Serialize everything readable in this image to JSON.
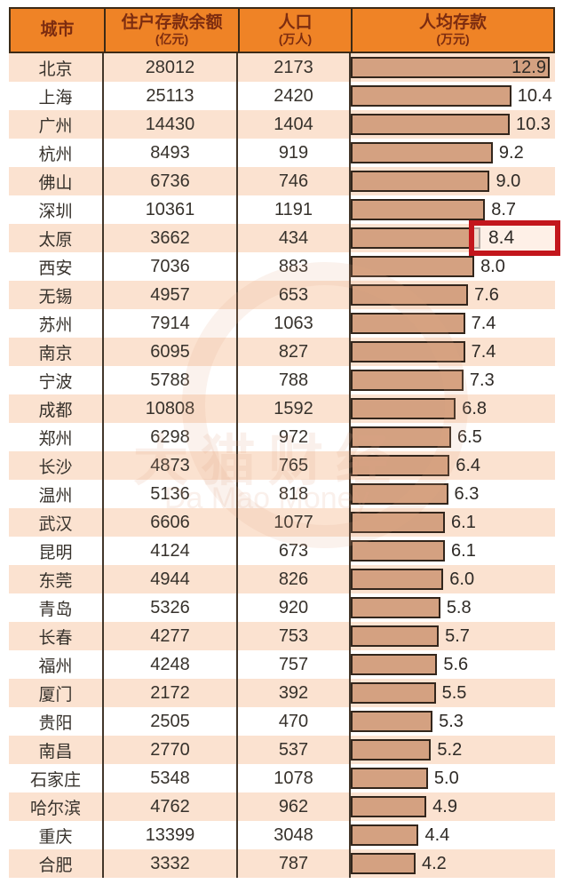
{
  "header": {
    "columns": [
      {
        "title": "城市",
        "unit": ""
      },
      {
        "title": "住户存款余额",
        "unit": "(亿元)"
      },
      {
        "title": "人口",
        "unit": "(万人)"
      },
      {
        "title": "人均存款",
        "unit": "(万元)"
      }
    ]
  },
  "watermark": {
    "text_cn": "大猫财经",
    "text_en": "Da Mao Money"
  },
  "colors": {
    "header_bg": "#ef8326",
    "header_text": "#7c2c10",
    "row_alt_bg": "#fbe2d0",
    "bar_fill": "#d4a181",
    "bar_border": "#33261c",
    "highlight_border": "#c3161c",
    "table_line": "#42362a"
  },
  "chart_data": {
    "type": "bar",
    "orientation": "horizontal",
    "title": "",
    "columns": [
      "城市",
      "住户存款余额(亿元)",
      "人口(万人)",
      "人均存款(万元)"
    ],
    "bar_field": "per_capita",
    "bar_max": 12.9,
    "legend": "none",
    "highlighted_city": "太原",
    "rows": [
      {
        "city": "北京",
        "deposit": 28012,
        "population": 2173,
        "per_capita": "12.9",
        "bar_label_inside": true
      },
      {
        "city": "上海",
        "deposit": 25113,
        "population": 2420,
        "per_capita": "10.4"
      },
      {
        "city": "广州",
        "deposit": 14430,
        "population": 1404,
        "per_capita": "10.3"
      },
      {
        "city": "杭州",
        "deposit": 8493,
        "population": 919,
        "per_capita": "9.2"
      },
      {
        "city": "佛山",
        "deposit": 6736,
        "population": 746,
        "per_capita": "9.0"
      },
      {
        "city": "深圳",
        "deposit": 10361,
        "population": 1191,
        "per_capita": "8.7"
      },
      {
        "city": "太原",
        "deposit": 3662,
        "population": 434,
        "per_capita": "8.4",
        "highlighted": true
      },
      {
        "city": "西安",
        "deposit": 7036,
        "population": 883,
        "per_capita": "8.0"
      },
      {
        "city": "无锡",
        "deposit": 4957,
        "population": 653,
        "per_capita": "7.6"
      },
      {
        "city": "苏州",
        "deposit": 7914,
        "population": 1063,
        "per_capita": "7.4"
      },
      {
        "city": "南京",
        "deposit": 6095,
        "population": 827,
        "per_capita": "7.4"
      },
      {
        "city": "宁波",
        "deposit": 5788,
        "population": 788,
        "per_capita": "7.3"
      },
      {
        "city": "成都",
        "deposit": 10808,
        "population": 1592,
        "per_capita": "6.8"
      },
      {
        "city": "郑州",
        "deposit": 6298,
        "population": 972,
        "per_capita": "6.5"
      },
      {
        "city": "长沙",
        "deposit": 4873,
        "population": 765,
        "per_capita": "6.4"
      },
      {
        "city": "温州",
        "deposit": 5136,
        "population": 818,
        "per_capita": "6.3"
      },
      {
        "city": "武汉",
        "deposit": 6606,
        "population": 1077,
        "per_capita": "6.1"
      },
      {
        "city": "昆明",
        "deposit": 4124,
        "population": 673,
        "per_capita": "6.1"
      },
      {
        "city": "东莞",
        "deposit": 4944,
        "population": 826,
        "per_capita": "6.0"
      },
      {
        "city": "青岛",
        "deposit": 5326,
        "population": 920,
        "per_capita": "5.8"
      },
      {
        "city": "长春",
        "deposit": 4277,
        "population": 753,
        "per_capita": "5.7"
      },
      {
        "city": "福州",
        "deposit": 4248,
        "population": 757,
        "per_capita": "5.6"
      },
      {
        "city": "厦门",
        "deposit": 2172,
        "population": 392,
        "per_capita": "5.5"
      },
      {
        "city": "贵阳",
        "deposit": 2505,
        "population": 470,
        "per_capita": "5.3"
      },
      {
        "city": "南昌",
        "deposit": 2770,
        "population": 537,
        "per_capita": "5.2"
      },
      {
        "city": "石家庄",
        "deposit": 5348,
        "population": 1078,
        "per_capita": "5.0"
      },
      {
        "city": "哈尔滨",
        "deposit": 4762,
        "population": 962,
        "per_capita": "4.9"
      },
      {
        "city": "重庆",
        "deposit": 13399,
        "population": 3048,
        "per_capita": "4.4"
      },
      {
        "city": "合肥",
        "deposit": 3332,
        "population": 787,
        "per_capita": "4.2"
      }
    ]
  }
}
